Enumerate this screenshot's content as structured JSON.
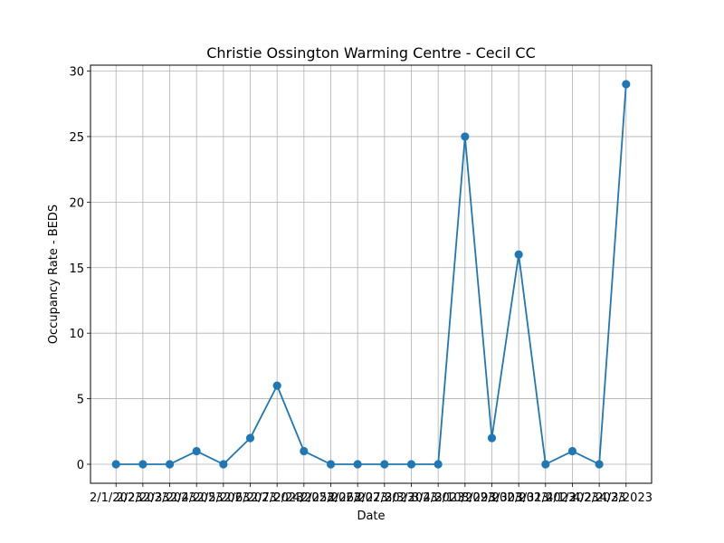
{
  "chart_data": {
    "type": "line",
    "title": "Christie Ossington Warming Centre - Cecil CC",
    "xlabel": "Date",
    "ylabel": "Occupancy Rate - BEDS",
    "categories": [
      "2/1/2023",
      "2/2/2023",
      "2/3/2023",
      "2/4/2023",
      "2/5/2023",
      "2/6/2023",
      "2/7/2023",
      "2/24/2023",
      "2/25/2023",
      "2/26/2023",
      "2/27/2023",
      "3/3/2023",
      "3/4/2023",
      "3/10/2023",
      "3/29/2023",
      "3/30/2023",
      "3/31/2023",
      "4/1/2023",
      "4/2/2023",
      "4/3/2023"
    ],
    "series": [
      {
        "values": [
          0,
          0,
          0,
          1,
          0,
          2,
          6,
          1,
          0,
          0,
          0,
          0,
          0,
          25,
          2,
          16,
          0,
          1,
          0,
          29
        ],
        "color": "#1f77b4"
      }
    ],
    "ylim": [
      -1.45,
      30.45
    ],
    "yticks": [
      0,
      5,
      10,
      15,
      20,
      25,
      30
    ],
    "grid": true
  }
}
